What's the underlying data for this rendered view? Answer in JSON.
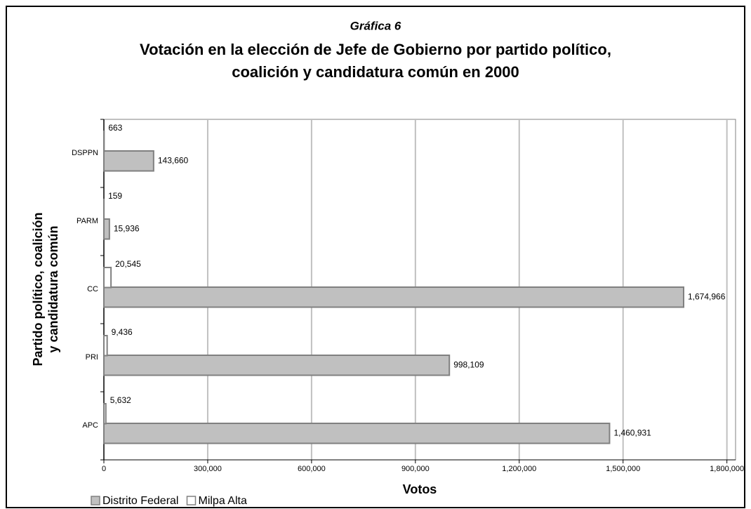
{
  "chart_data": {
    "type": "hbar",
    "caption": "Gráfica 6",
    "title": [
      "Votación en la elección de Jefe de Gobierno por partido político,",
      "coalición y candidatura común en 2000"
    ],
    "y_label": [
      "Partido político, coalición",
      "y candidatura común"
    ],
    "x_label": "Votos",
    "categories": [
      "DSPPN",
      "PARM",
      "CC",
      "PRI",
      "APC"
    ],
    "series": [
      {
        "name": "Distrito Federal",
        "color": "#c0c0c0",
        "values": [
          143660,
          15936,
          1674966,
          998109,
          1460931
        ],
        "value_labels": [
          "143,660",
          "15,936",
          "1,674,966",
          "998,109",
          "1,460,931"
        ]
      },
      {
        "name": "Milpa Alta",
        "color": "#ffffff",
        "values": [
          663,
          159,
          20545,
          9436,
          5632
        ],
        "value_labels": [
          "663",
          "159",
          "20,545",
          "9,436",
          "5,632"
        ]
      }
    ],
    "xlim": [
      0,
      1825000
    ],
    "xticks": [
      0,
      {
        "value": 300000,
        "label": "300,000"
      },
      {
        "value": 600000,
        "label": "600,000"
      },
      {
        "value": 900000,
        "label": "900,000"
      },
      {
        "value": 1200000,
        "label": "1,200,000"
      },
      {
        "value": 1500000,
        "label": "1,500,000"
      },
      {
        "value": 1800000,
        "label": "1,800,000"
      }
    ],
    "grid": true,
    "legend": "bottom-left"
  }
}
